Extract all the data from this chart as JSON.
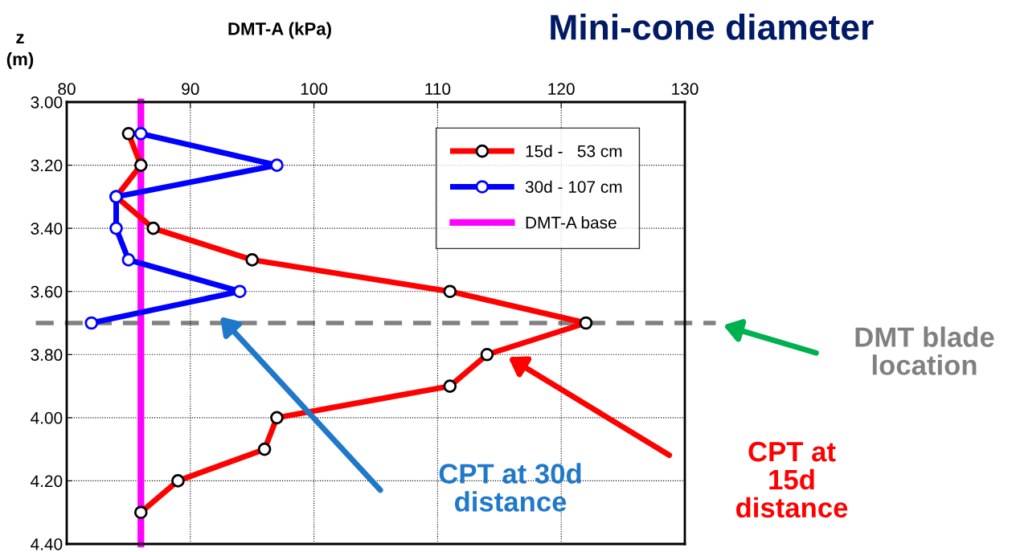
{
  "chart_data": {
    "type": "line",
    "title": "Mini-cone diameter",
    "xlabel": "DMT-A (kPa)",
    "ylabel": "z\n(m)",
    "xlim": [
      80,
      130
    ],
    "xticks": [
      80,
      90,
      100,
      110,
      120,
      130
    ],
    "ylim": [
      4.4,
      3.0
    ],
    "yticks": [
      {
        "value": 3.0,
        "label": "3.00"
      },
      {
        "value": 3.2,
        "label": "3.20"
      },
      {
        "value": 3.4,
        "label": "3.40"
      },
      {
        "value": 3.6,
        "label": "3.60"
      },
      {
        "value": 3.8,
        "label": "3.80"
      },
      {
        "value": 4.0,
        "label": "4.00"
      },
      {
        "value": 4.2,
        "label": "4.20"
      },
      {
        "value": 4.4,
        "label": "4.40"
      }
    ],
    "grid": true,
    "legend": "top right",
    "marker": "circle",
    "line_style": "solid",
    "series": [
      {
        "name": "15d -   53 cm",
        "color": "#ff0000",
        "x": [
          85,
          86,
          84,
          87,
          95,
          111,
          122,
          114,
          111,
          97,
          96,
          89,
          86
        ],
        "values": [
          3.1,
          3.2,
          3.3,
          3.4,
          3.5,
          3.6,
          3.7,
          3.8,
          3.9,
          4.0,
          4.1,
          4.2,
          4.3
        ]
      },
      {
        "name": "30d - 107 cm",
        "color": "#0000ff",
        "x": [
          86,
          97,
          84,
          84,
          85,
          94,
          82
        ],
        "values": [
          3.1,
          3.2,
          3.3,
          3.4,
          3.5,
          3.6,
          3.7
        ]
      },
      {
        "name": "DMT-A base",
        "color": "#ff00ff",
        "marker": "none",
        "x": [
          86,
          86
        ],
        "values": [
          3.0,
          4.4
        ]
      }
    ],
    "ref_lines": [
      {
        "axis": "y",
        "value": 3.7,
        "color": "#808080",
        "line_style": "dashed"
      }
    ],
    "annotations": [
      "DMT blade location",
      "CPT at 30d distance",
      "CPT at 15d distance"
    ]
  }
}
